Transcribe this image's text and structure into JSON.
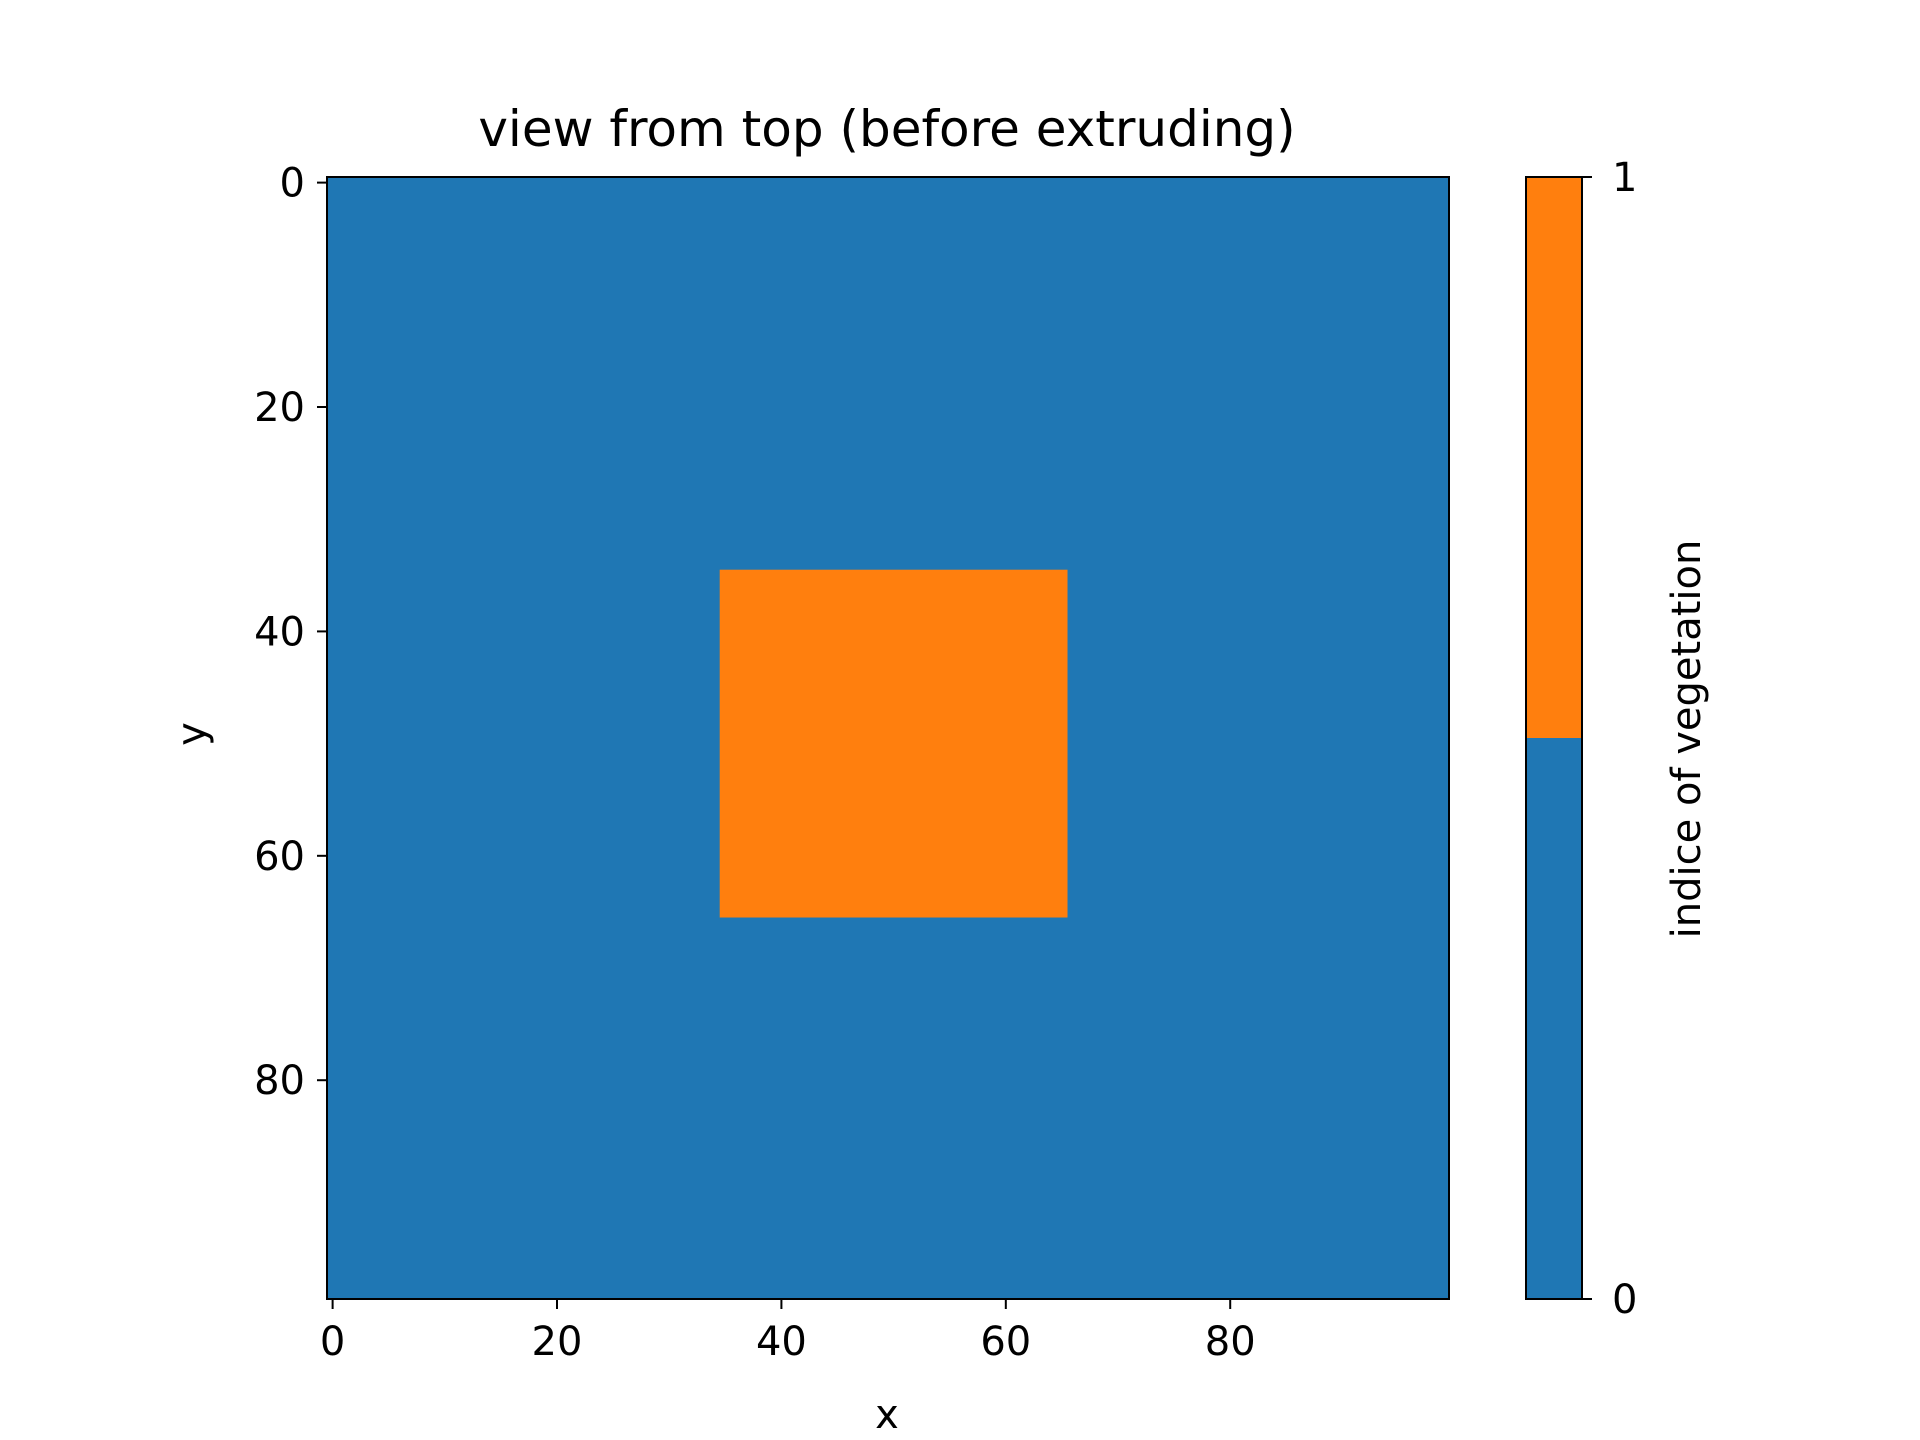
{
  "chart_data": {
    "type": "heatmap",
    "title": "view from top (before extruding)",
    "xlabel": "x",
    "ylabel": "y",
    "xlim": [
      -0.5,
      99.5
    ],
    "ylim": [
      99.5,
      -0.5
    ],
    "y_inverted": true,
    "xticks": [
      0,
      20,
      40,
      60,
      80
    ],
    "yticks": [
      0,
      20,
      40,
      60,
      80
    ],
    "grid": false,
    "grid_size": [
      100,
      100
    ],
    "background_value": 0,
    "regions": [
      {
        "value": 1,
        "x_range": [
          35,
          65
        ],
        "y_range": [
          35,
          65
        ]
      }
    ],
    "colorbar": {
      "label": "indice of vegetation",
      "min": 0,
      "max": 1,
      "ticks": [
        0,
        1
      ],
      "levels": [
        {
          "value": 0,
          "color": "#1f77b4"
        },
        {
          "value": 1,
          "color": "#ff7f0e"
        }
      ]
    }
  }
}
